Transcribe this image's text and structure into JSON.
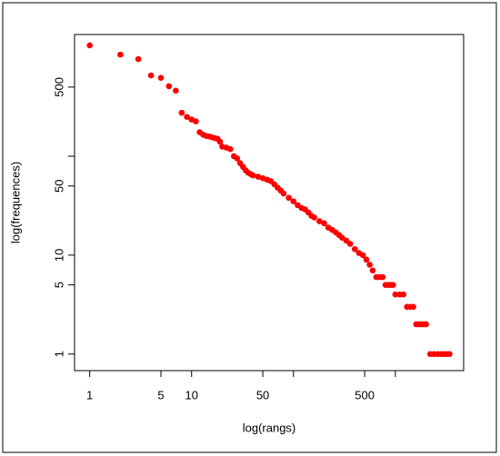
{
  "chart_data": {
    "type": "scatter",
    "x_label": "log(rangs)",
    "y_label": "log(frequences)",
    "log_x": true,
    "log_y": true,
    "color": "#ff0000",
    "xlim": [
      0.71,
      4680
    ],
    "ylim": [
      0.68,
      1700
    ],
    "xticks": [
      1,
      5,
      10,
      50,
      500
    ],
    "minor_xticks": [
      100,
      1000
    ],
    "yticks": [
      1,
      5,
      10,
      50,
      500
    ],
    "minor_yticks": [
      100
    ],
    "x": [
      1,
      2,
      3,
      4,
      5,
      6,
      7,
      8,
      9,
      10,
      11,
      12,
      13,
      14,
      15,
      16,
      17,
      18,
      19,
      20,
      22,
      24,
      26,
      28,
      30,
      32,
      34,
      36,
      38,
      40,
      45,
      50,
      55,
      60,
      65,
      70,
      75,
      80,
      90,
      100,
      110,
      120,
      130,
      140,
      150,
      160,
      180,
      200,
      220,
      240,
      260,
      280,
      300,
      330,
      360,
      400,
      440,
      480,
      520,
      560,
      600,
      650,
      700,
      750,
      800,
      850,
      900,
      950,
      1000,
      1100,
      1200,
      1300,
      1400,
      1500,
      1600,
      1700,
      1800,
      1900,
      2000,
      2200,
      2400,
      2600,
      2800,
      3000,
      3200,
      3400
    ],
    "values": [
      1320,
      1065,
      960,
      655,
      620,
      510,
      460,
      275,
      250,
      235,
      225,
      175,
      165,
      160,
      158,
      155,
      152,
      150,
      140,
      125,
      122,
      118,
      100,
      95,
      85,
      78,
      72,
      68,
      66,
      64,
      62,
      60,
      58,
      56,
      52,
      48,
      45,
      42,
      38,
      35,
      32,
      30,
      29,
      27,
      25,
      24,
      22,
      21,
      19,
      18,
      17,
      16,
      15,
      14,
      13,
      11.5,
      10.5,
      10,
      9,
      8,
      7,
      6,
      6,
      6,
      5,
      5,
      5,
      5,
      4,
      4,
      4,
      3,
      3,
      3,
      2,
      2,
      2,
      2,
      2,
      1,
      1,
      1,
      1,
      1,
      1,
      1
    ]
  }
}
